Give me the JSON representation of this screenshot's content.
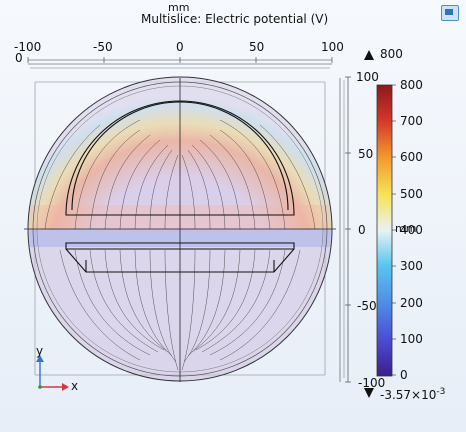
{
  "plot": {
    "units": "mm",
    "title": "Multislice: Electric potential (V)"
  },
  "axes": {
    "x_ticks": [
      "-100",
      "-50",
      "0",
      "50",
      "100"
    ],
    "x_zero": "0",
    "z_ticks": [
      "100",
      "50",
      "0",
      "-50",
      "-100"
    ],
    "z_unit": "mm",
    "triad": {
      "y_label": "y",
      "x_label": "x"
    }
  },
  "colorbar": {
    "max_marker": "800",
    "min_marker": "-3.57×10",
    "min_exponent": "-3",
    "ticks": [
      "800",
      "700",
      "600",
      "500",
      "400",
      "300",
      "200",
      "100",
      "0"
    ],
    "colors": [
      "#3b1e8c",
      "#4a4bd0",
      "#4e8de8",
      "#58c6ee",
      "#e9f2f4",
      "#f6e45a",
      "#f29a2e",
      "#d4362a",
      "#8b1a1a"
    ]
  },
  "toolbar": {
    "icon": "render-icon"
  }
}
